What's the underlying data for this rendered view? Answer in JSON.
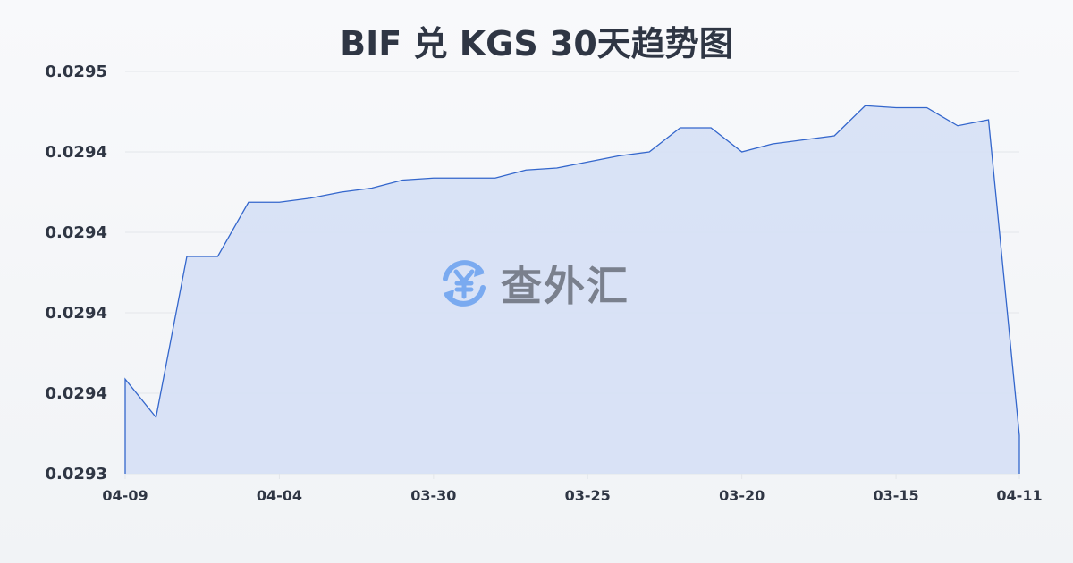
{
  "title": "BIF 兑 KGS 30天趋势图",
  "watermark": {
    "text": "查外汇",
    "icon": "yen-exchange-icon"
  },
  "colors": {
    "line": "#3366cc",
    "fill": "#d6e0f5",
    "grid": "#e3e6ea",
    "text": "#2f3644",
    "watermark_icon": "#7aaaf0"
  },
  "chart_data": {
    "type": "area",
    "title": "BIF 兑 KGS 30天趋势图",
    "xlabel": "",
    "ylabel": "",
    "ylim": [
      0.0293,
      0.0295
    ],
    "grid": true,
    "y_tick_values": [
      0.0295,
      0.02946,
      0.02942,
      0.02938,
      0.02934,
      0.0293
    ],
    "y_tick_labels": [
      "0.0295",
      "0.0294",
      "0.0294",
      "0.0294",
      "0.0294",
      "0.0293"
    ],
    "x_tick_indices": [
      0,
      5,
      10,
      15,
      20,
      25,
      29
    ],
    "x_tick_labels": [
      "04-09",
      "04-04",
      "03-30",
      "03-25",
      "03-20",
      "03-15",
      "04-11"
    ],
    "values": [
      0.029347,
      0.029328,
      0.029408,
      0.029408,
      0.029435,
      0.029435,
      0.029437,
      0.02944,
      0.029442,
      0.029446,
      0.029447,
      0.029447,
      0.029447,
      0.029451,
      0.029452,
      0.029455,
      0.029458,
      0.02946,
      0.029472,
      0.029472,
      0.02946,
      0.029464,
      0.029466,
      0.029468,
      0.029483,
      0.029482,
      0.029482,
      0.029473,
      0.029476,
      0.029319
    ]
  }
}
